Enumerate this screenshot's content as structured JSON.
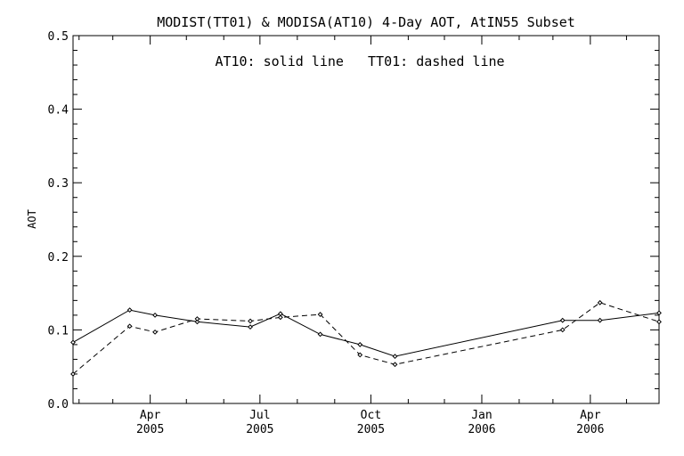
{
  "chart_data": {
    "type": "line",
    "title": "MODIST(TT01) & MODISA(AT10) 4-Day AOT, AtIN55 Subset",
    "annotation": "AT10: solid line   TT01: dashed line",
    "xlabel": "",
    "ylabel": "AOT",
    "ylim": [
      0.0,
      0.5
    ],
    "xlim": [
      "2005-01-27",
      "2006-05-28"
    ],
    "yticks": [
      "0.0",
      "0.1",
      "0.2",
      "0.3",
      "0.4",
      "0.5"
    ],
    "xticks": [
      {
        "date": "2005-04-01",
        "month": "Apr",
        "year": "2005"
      },
      {
        "date": "2005-07-01",
        "month": "Jul",
        "year": "2005"
      },
      {
        "date": "2005-10-01",
        "month": "Oct",
        "year": "2005"
      },
      {
        "date": "2006-01-01",
        "month": "Jan",
        "year": "2006"
      },
      {
        "date": "2006-04-01",
        "month": "Apr",
        "year": "2006"
      }
    ],
    "grid": false,
    "series": [
      {
        "name": "AT10",
        "style": "solid",
        "color": "#000000",
        "points": [
          {
            "x": "2005-01-27",
            "y": 0.083
          },
          {
            "x": "2005-03-15",
            "y": 0.127
          },
          {
            "x": "2005-04-05",
            "y": 0.12
          },
          {
            "x": "2005-05-10",
            "y": 0.111
          },
          {
            "x": "2005-06-23",
            "y": 0.104
          },
          {
            "x": "2005-07-18",
            "y": 0.122
          },
          {
            "x": "2005-08-20",
            "y": 0.094
          },
          {
            "x": "2005-09-22",
            "y": 0.08
          },
          {
            "x": "2005-10-21",
            "y": 0.064
          },
          {
            "x": "2006-03-09",
            "y": 0.113
          },
          {
            "x": "2006-04-09",
            "y": 0.113
          },
          {
            "x": "2006-05-28",
            "y": 0.123
          }
        ]
      },
      {
        "name": "TT01",
        "style": "dashed",
        "color": "#000000",
        "points": [
          {
            "x": "2005-01-27",
            "y": 0.04
          },
          {
            "x": "2005-03-15",
            "y": 0.105
          },
          {
            "x": "2005-04-05",
            "y": 0.097
          },
          {
            "x": "2005-05-10",
            "y": 0.115
          },
          {
            "x": "2005-06-23",
            "y": 0.112
          },
          {
            "x": "2005-07-18",
            "y": 0.117
          },
          {
            "x": "2005-08-20",
            "y": 0.121
          },
          {
            "x": "2005-09-22",
            "y": 0.066
          },
          {
            "x": "2005-10-21",
            "y": 0.053
          },
          {
            "x": "2006-03-09",
            "y": 0.1
          },
          {
            "x": "2006-04-09",
            "y": 0.137
          },
          {
            "x": "2006-05-28",
            "y": 0.111
          }
        ]
      }
    ]
  }
}
